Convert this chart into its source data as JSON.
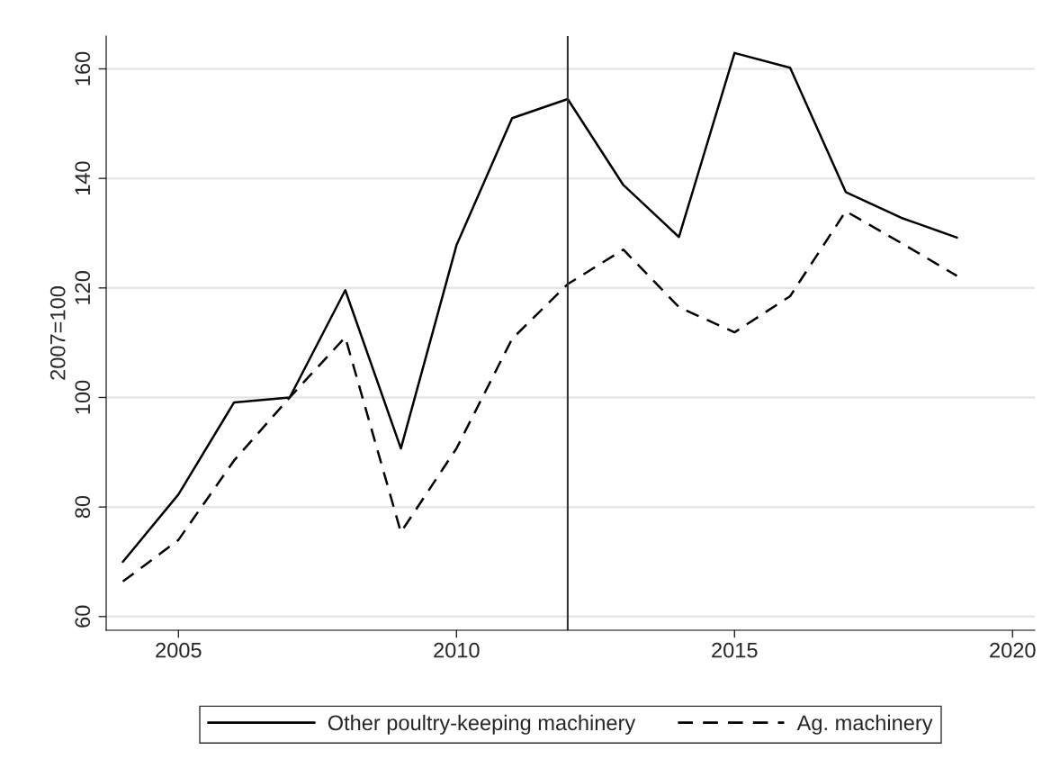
{
  "chart_data": {
    "type": "line",
    "ylabel": "2007=100",
    "x": [
      2004,
      2005,
      2006,
      2007,
      2008,
      2009,
      2010,
      2011,
      2012,
      2013,
      2014,
      2015,
      2016,
      2017,
      2018,
      2019
    ],
    "series": [
      {
        "name": "Other poultry-keeping machinery",
        "color": "#000000",
        "line_style": "solid",
        "values": [
          70,
          82.3,
          99.1,
          100,
          119.6,
          90.7,
          127.8,
          151,
          154.5,
          138.8,
          129.3,
          162.9,
          160.2,
          137.5,
          132.8,
          129.2
        ]
      },
      {
        "name": "Ag. machinery",
        "color": "#000000",
        "line_style": "dashed",
        "values": [
          66.4,
          74,
          88.5,
          100,
          111,
          75.4,
          90.7,
          110.7,
          120.7,
          127,
          116.5,
          111.9,
          118.5,
          134,
          128.2,
          122.2
        ]
      }
    ],
    "xlim": [
      2003.7,
      2020.4
    ],
    "xticks": [
      2005,
      2010,
      2015,
      2020
    ],
    "ylim": [
      57.5,
      166
    ],
    "yticks": [
      60,
      80,
      100,
      120,
      140,
      160
    ],
    "ref_lines": [
      {
        "axis": "x",
        "value": 2012,
        "color": "#333333"
      }
    ],
    "grid": "y",
    "legend": "bottom",
    "marker": "none"
  }
}
